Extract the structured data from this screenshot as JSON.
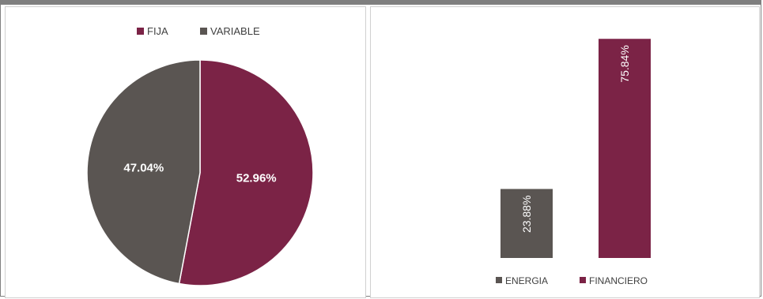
{
  "chart_data": [
    {
      "type": "pie",
      "title": "",
      "legend": {
        "position": "top",
        "entries": [
          "FIJA",
          "VARIABLE"
        ]
      },
      "slices": [
        {
          "label": "FIJA",
          "value": 52.96,
          "display": "52.96%",
          "color": "#7b2346"
        },
        {
          "label": "VARIABLE",
          "value": 47.04,
          "display": "47.04%",
          "color": "#5a5552"
        }
      ]
    },
    {
      "type": "bar",
      "title": "",
      "categories": [
        "ENERGIA",
        "FINANCIERO"
      ],
      "values": [
        23.88,
        75.84
      ],
      "labels": [
        "23.88%",
        "75.84%"
      ],
      "colors": [
        "#5a5552",
        "#7b2346"
      ],
      "legend": {
        "position": "bottom",
        "entries": [
          "ENERGIA",
          "FINANCIERO"
        ]
      },
      "ylim": [
        0,
        80
      ],
      "grid": false
    }
  ]
}
